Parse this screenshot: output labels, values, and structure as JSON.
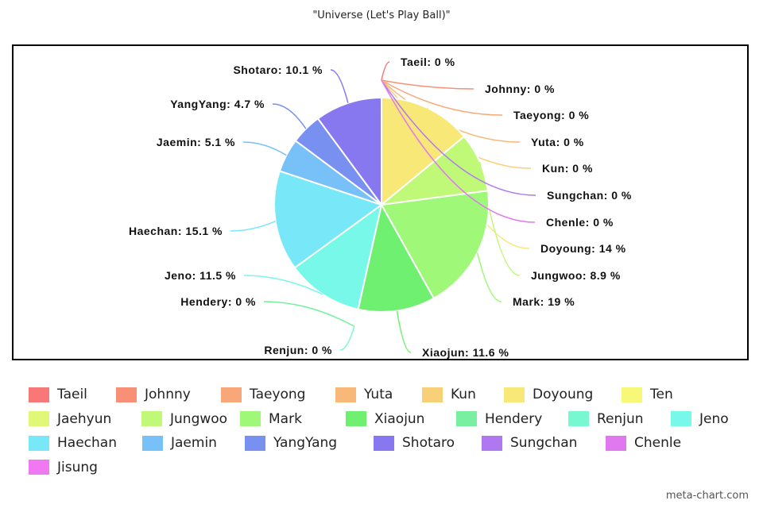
{
  "chart_data": {
    "type": "pie",
    "title": "\"Universe (Let's Play Ball)\"",
    "unit": "%",
    "legend_position": "bottom",
    "slices": [
      {
        "label": "Taeil",
        "value": 0,
        "color": "#f87878",
        "shown": true
      },
      {
        "label": "Johnny",
        "value": 0,
        "color": "#f89078",
        "shown": true
      },
      {
        "label": "Taeyong",
        "value": 0,
        "color": "#f8a878",
        "shown": true
      },
      {
        "label": "Yuta",
        "value": 0,
        "color": "#f8b878",
        "shown": true
      },
      {
        "label": "Kun",
        "value": 0,
        "color": "#f8d078",
        "shown": true
      },
      {
        "label": "Doyoung",
        "value": 14,
        "color": "#f8e878",
        "shown": true
      },
      {
        "label": "Ten",
        "value": 0,
        "color": "#f8f878",
        "shown": false
      },
      {
        "label": "Jaehyun",
        "value": 0,
        "color": "#e0f878",
        "shown": false
      },
      {
        "label": "Jungwoo",
        "value": 8.9,
        "color": "#c0f878",
        "shown": true
      },
      {
        "label": "Mark",
        "value": 19,
        "color": "#a0f878",
        "shown": true
      },
      {
        "label": "Xiaojun",
        "value": 11.6,
        "color": "#70f070",
        "shown": true
      },
      {
        "label": "Hendery",
        "value": 0,
        "color": "#78f0a0",
        "shown": true
      },
      {
        "label": "Renjun",
        "value": 0,
        "color": "#78f8d0",
        "shown": true
      },
      {
        "label": "Jeno",
        "value": 11.5,
        "color": "#78f8e8",
        "shown": true
      },
      {
        "label": "Haechan",
        "value": 15.1,
        "color": "#78e8f8",
        "shown": true
      },
      {
        "label": "Jaemin",
        "value": 5.1,
        "color": "#78c0f8",
        "shown": true
      },
      {
        "label": "YangYang",
        "value": 4.7,
        "color": "#7890f0",
        "shown": true
      },
      {
        "label": "Shotaro",
        "value": 10.1,
        "color": "#8878f0",
        "shown": true
      },
      {
        "label": "Sungchan",
        "value": 0,
        "color": "#b078f0",
        "shown": true
      },
      {
        "label": "Chenle",
        "value": 0,
        "color": "#e078f0",
        "shown": true
      },
      {
        "label": "Jisung",
        "value": 0,
        "color": "#f078f0",
        "shown": false
      }
    ]
  },
  "credit": "meta-chart.com"
}
